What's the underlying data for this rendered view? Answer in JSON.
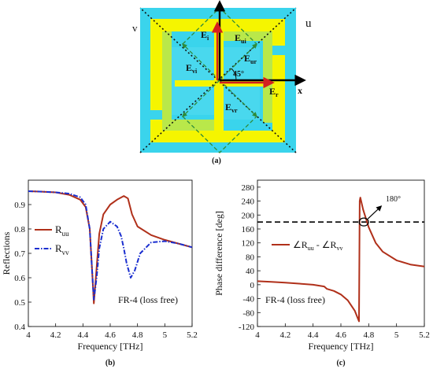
{
  "panel_a": {
    "caption": "(a)",
    "labels": {
      "Ei": "E",
      "Ei_sub": "i",
      "Eui": "E",
      "Eui_sub": "ui",
      "Eur": "E",
      "Eur_sub": "ur",
      "Evi": "E",
      "Evi_sub": "vi",
      "Evr": "E",
      "Evr_sub": "vr",
      "Er": "E",
      "Er_sub": "r",
      "x": "x",
      "u": "u",
      "v": "v",
      "angle": "45°"
    },
    "colors": {
      "background": "#3ad4ec",
      "metal": "#f5f500",
      "dielectric": "#b9e84a"
    }
  },
  "chart_data": [
    {
      "id": "b",
      "type": "line",
      "caption": "(b)",
      "xlabel": "Frequency [THz]",
      "ylabel": "Reflections",
      "xlim": [
        4,
        5.2
      ],
      "ylim": [
        0.4,
        1.0
      ],
      "xticks": [
        "4",
        "4.2",
        "4.4",
        "4.6",
        "4.8",
        "5",
        "5.2"
      ],
      "yticks": [
        "0.4",
        "0.5",
        "0.6",
        "0.7",
        "0.8",
        "0.9"
      ],
      "grid": false,
      "legend_position": "middle-left",
      "annotation": "FR-4 (loss free)",
      "series": [
        {
          "name": "R",
          "name_sub": "uu",
          "color": "#b0301a",
          "dash": "solid",
          "x": [
            4.0,
            4.1,
            4.2,
            4.3,
            4.38,
            4.42,
            4.45,
            4.47,
            4.48,
            4.5,
            4.52,
            4.55,
            4.6,
            4.65,
            4.7,
            4.73,
            4.76,
            4.8,
            4.9,
            5.0,
            5.1,
            5.2
          ],
          "y": [
            0.955,
            0.953,
            0.95,
            0.94,
            0.92,
            0.89,
            0.8,
            0.6,
            0.495,
            0.64,
            0.78,
            0.86,
            0.9,
            0.92,
            0.935,
            0.925,
            0.86,
            0.81,
            0.775,
            0.755,
            0.74,
            0.725
          ]
        },
        {
          "name": "R",
          "name_sub": "vv",
          "color": "#1a2ecf",
          "dash": "dashdot",
          "x": [
            4.0,
            4.1,
            4.2,
            4.3,
            4.38,
            4.42,
            4.45,
            4.47,
            4.48,
            4.5,
            4.52,
            4.55,
            4.6,
            4.65,
            4.68,
            4.7,
            4.72,
            4.75,
            4.78,
            4.82,
            4.9,
            5.0,
            5.1,
            5.2
          ],
          "y": [
            0.955,
            0.953,
            0.95,
            0.945,
            0.93,
            0.9,
            0.8,
            0.6,
            0.51,
            0.6,
            0.72,
            0.8,
            0.83,
            0.81,
            0.77,
            0.72,
            0.66,
            0.6,
            0.63,
            0.7,
            0.745,
            0.75,
            0.74,
            0.725
          ]
        }
      ]
    },
    {
      "id": "c",
      "type": "line",
      "caption": "(c)",
      "xlabel": "Frequency [THz]",
      "ylabel": "Phase difference [deg]",
      "xlim": [
        4,
        5.2
      ],
      "ylim": [
        -120,
        300
      ],
      "xticks": [
        "4",
        "4.2",
        "4.4",
        "4.6",
        "4.8",
        "5",
        "5.2"
      ],
      "yticks": [
        "-120",
        "-80",
        "-40",
        "0",
        "40",
        "80",
        "120",
        "160",
        "200",
        "240",
        "280"
      ],
      "grid": false,
      "legend_position": "middle-left",
      "annotation": "FR-4 (loss free)",
      "reference_line": {
        "y": 180,
        "style": "dashed"
      },
      "marker_label": "180°",
      "series": [
        {
          "name": "∠R",
          "name_sub1": "uu",
          "name_mid": " - ∠R",
          "name_sub2": "vv",
          "color": "#b0301a",
          "x": [
            4.0,
            4.1,
            4.2,
            4.3,
            4.4,
            4.48,
            4.5,
            4.55,
            4.6,
            4.65,
            4.7,
            4.73,
            4.735,
            4.74,
            4.76,
            4.8,
            4.85,
            4.9,
            5.0,
            5.1,
            5.2
          ],
          "y": [
            10,
            8,
            6,
            3,
            0,
            -5,
            -12,
            -18,
            -28,
            -45,
            -75,
            -105,
            240,
            250,
            215,
            165,
            120,
            95,
            70,
            58,
            52
          ]
        }
      ]
    }
  ]
}
